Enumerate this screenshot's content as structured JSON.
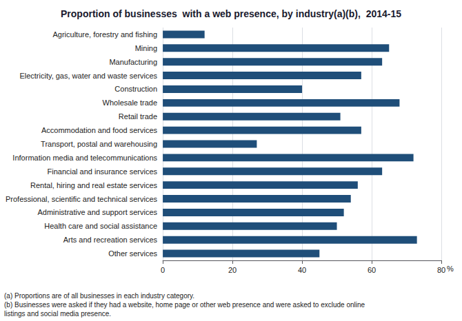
{
  "chart_data": {
    "type": "bar",
    "orientation": "horizontal",
    "title": "Proportion of businesses  with a web presence, by industry(a)(b),  2014-15",
    "categories": [
      "Agriculture, forestry and fishing",
      "Mining",
      "Manufacturing",
      "Electricity, gas, water and waste services",
      "Construction",
      "Wholesale trade",
      "Retail trade",
      "Accommodation and food services",
      "Transport, postal and warehousing",
      "Information media and telecommunications",
      "Financial and insurance services",
      "Rental, hiring and real estate services",
      "Professional, scientific and technical services",
      "Administrative and support services",
      "Health care and social assistance",
      "Arts and recreation services",
      "Other services"
    ],
    "values": [
      12,
      65,
      63,
      57,
      40,
      68,
      51,
      57,
      27,
      72,
      63,
      56,
      54,
      52,
      50,
      73,
      45
    ],
    "color": "#1F4E79",
    "xlabel": "%",
    "xlim": [
      0,
      80
    ],
    "xticks": [
      0,
      20,
      40,
      60,
      80
    ],
    "grid": true,
    "annotations": [
      "(a) Proportions are of all businesses in each industry category.",
      "(b) Businesses were asked if they had a website, home page or other web presence and were asked to exclude online\nlistings and social media presence."
    ]
  }
}
